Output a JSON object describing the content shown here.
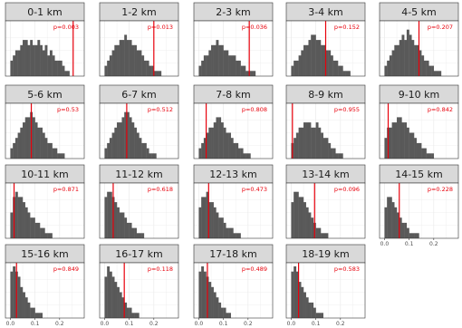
{
  "colors": {
    "strip_fill": "#d9d9d9",
    "strip_border": "#333333",
    "panel_border": "#333333",
    "grid": "#ebebeb",
    "bars": "#595959",
    "observed_line": "#e8000b",
    "p_value_text": "#e8000b"
  },
  "chart_data": {
    "type": "bar",
    "layout": "faceted histograms, 4 rows x 5 columns (19 panels)",
    "xlim": [
      -0.02,
      0.3
    ],
    "x_ticks": [
      "0.0",
      "0.1",
      "0.2"
    ],
    "bins": [
      0.0,
      0.01,
      0.02,
      0.03,
      0.04,
      0.05,
      0.06,
      0.07,
      0.08,
      0.09,
      0.1,
      0.11,
      0.12,
      0.13,
      0.14,
      0.15,
      0.16,
      0.17,
      0.18,
      0.19,
      0.2,
      0.21,
      0.22,
      0.23,
      0.24,
      0.25,
      0.26
    ],
    "panels": [
      {
        "label": "0-1 km",
        "p": "p=0.003",
        "observed": 0.255,
        "values": [
          3,
          4,
          5,
          5,
          6,
          7,
          7,
          6,
          7,
          6,
          6,
          7,
          6,
          5,
          6,
          4,
          5,
          4,
          3,
          3,
          3,
          2,
          1,
          1,
          0,
          0,
          0
        ]
      },
      {
        "label": "1-2 km",
        "p": "p=0.013",
        "observed": 0.2,
        "values": [
          2,
          3,
          4,
          5,
          6,
          6,
          7,
          7,
          8,
          7,
          7,
          6,
          6,
          5,
          5,
          4,
          3,
          3,
          2,
          2,
          1,
          1,
          1,
          0,
          0,
          0,
          0
        ]
      },
      {
        "label": "2-3 km",
        "p": "p=0.036",
        "observed": 0.205,
        "values": [
          2,
          3,
          4,
          4,
          5,
          6,
          6,
          7,
          6,
          6,
          5,
          5,
          4,
          4,
          4,
          3,
          3,
          2,
          2,
          1,
          1,
          1,
          1,
          0,
          0,
          0,
          0
        ]
      },
      {
        "label": "3-4 km",
        "p": "p=0.152",
        "observed": 0.14,
        "values": [
          2,
          3,
          3,
          4,
          5,
          6,
          6,
          7,
          8,
          8,
          7,
          7,
          6,
          6,
          5,
          5,
          4,
          3,
          3,
          2,
          2,
          1,
          1,
          1,
          0,
          0,
          0
        ]
      },
      {
        "label": "4-5 km",
        "p": "p=0.207",
        "observed": 0.14,
        "values": [
          2,
          3,
          4,
          5,
          6,
          6,
          7,
          8,
          7,
          9,
          8,
          7,
          6,
          6,
          5,
          4,
          3,
          3,
          2,
          2,
          1,
          1,
          1,
          0,
          0,
          0,
          0
        ]
      },
      {
        "label": "5-6 km",
        "p": "p=0.53",
        "observed": 0.085,
        "values": [
          2,
          3,
          4,
          5,
          6,
          7,
          8,
          8,
          9,
          8,
          7,
          6,
          6,
          5,
          4,
          3,
          3,
          2,
          2,
          1,
          1,
          1,
          0,
          0,
          0,
          0,
          0
        ]
      },
      {
        "label": "6-7 km",
        "p": "p=0.512",
        "observed": 0.09,
        "values": [
          2,
          3,
          4,
          5,
          6,
          7,
          7,
          8,
          9,
          9,
          8,
          7,
          6,
          5,
          4,
          3,
          3,
          2,
          1,
          1,
          1,
          0,
          0,
          0,
          0,
          0,
          0
        ]
      },
      {
        "label": "7-8 km",
        "p": "p=0.808",
        "observed": 0.03,
        "values": [
          2,
          3,
          4,
          5,
          6,
          6,
          7,
          8,
          8,
          7,
          6,
          5,
          5,
          4,
          3,
          3,
          2,
          2,
          1,
          1,
          1,
          0,
          0,
          0,
          0,
          0,
          0
        ]
      },
      {
        "label": "8-9 km",
        "p": "p=0.955",
        "observed": 0.005,
        "values": [
          3,
          4,
          5,
          6,
          6,
          7,
          7,
          7,
          6,
          6,
          7,
          6,
          5,
          4,
          4,
          3,
          2,
          2,
          1,
          1,
          1,
          0,
          0,
          0,
          0,
          0,
          0
        ]
      },
      {
        "label": "9-10 km",
        "p": "p=0.842",
        "observed": 0.015,
        "values": [
          4,
          6,
          6,
          7,
          7,
          8,
          8,
          7,
          7,
          6,
          5,
          5,
          4,
          3,
          3,
          2,
          2,
          1,
          1,
          1,
          0,
          0,
          0,
          0,
          0,
          0,
          0
        ]
      },
      {
        "label": "10-11 km",
        "p": "p=0.871",
        "observed": 0.015,
        "values": [
          5,
          8,
          9,
          8,
          8,
          7,
          6,
          5,
          4,
          4,
          3,
          3,
          2,
          2,
          1,
          1,
          1,
          0,
          0,
          0,
          0,
          0,
          0,
          0,
          0,
          0,
          0
        ]
      },
      {
        "label": "11-12 km",
        "p": "p=0.618",
        "observed": 0.035,
        "values": [
          8,
          9,
          9,
          8,
          7,
          6,
          5,
          5,
          4,
          3,
          3,
          2,
          2,
          1,
          1,
          1,
          0,
          0,
          0,
          0,
          0,
          0,
          0,
          0,
          0,
          0,
          0
        ]
      },
      {
        "label": "12-13 km",
        "p": "p=0.473",
        "observed": 0.04,
        "values": [
          6,
          8,
          8,
          9,
          7,
          7,
          6,
          5,
          4,
          4,
          3,
          2,
          2,
          2,
          1,
          1,
          1,
          0,
          0,
          0,
          0,
          0,
          0,
          0,
          0,
          0,
          0
        ]
      },
      {
        "label": "13-14 km",
        "p": "p=0.096",
        "observed": 0.095,
        "values": [
          7,
          9,
          9,
          8,
          8,
          7,
          6,
          5,
          4,
          3,
          2,
          2,
          1,
          1,
          1,
          0,
          0,
          0,
          0,
          0,
          0,
          0,
          0,
          0,
          0,
          0,
          0
        ]
      },
      {
        "label": "14-15 km",
        "p": "p=0.228",
        "observed": 0.06,
        "values": [
          6,
          8,
          8,
          7,
          6,
          5,
          4,
          3,
          3,
          2,
          1,
          1,
          1,
          1,
          0,
          0,
          0,
          0,
          0,
          0,
          0,
          0,
          0,
          0,
          0,
          0,
          0
        ]
      },
      {
        "label": "15-16 km",
        "p": "p=0.849",
        "observed": 0.025,
        "values": [
          9,
          10,
          9,
          8,
          6,
          5,
          4,
          3,
          2,
          2,
          1,
          1,
          1,
          0,
          0,
          0,
          0,
          0,
          0,
          0,
          0,
          0,
          0,
          0,
          0,
          0,
          0
        ]
      },
      {
        "label": "16-17 km",
        "p": "p=0.118",
        "observed": 0.08,
        "values": [
          8,
          10,
          9,
          8,
          7,
          6,
          5,
          4,
          3,
          2,
          2,
          1,
          1,
          1,
          0,
          0,
          0,
          0,
          0,
          0,
          0,
          0,
          0,
          0,
          0,
          0,
          0
        ]
      },
      {
        "label": "17-18 km",
        "p": "p=0.489",
        "observed": 0.035,
        "values": [
          9,
          10,
          9,
          8,
          7,
          6,
          5,
          4,
          3,
          2,
          2,
          1,
          1,
          0,
          0,
          0,
          0,
          0,
          0,
          0,
          0,
          0,
          0,
          0,
          0,
          0,
          0
        ]
      },
      {
        "label": "18-19 km",
        "p": "p=0.583",
        "observed": 0.03,
        "values": [
          9,
          10,
          9,
          7,
          6,
          5,
          4,
          3,
          3,
          2,
          1,
          1,
          1,
          0,
          0,
          0,
          0,
          0,
          0,
          0,
          0,
          0,
          0,
          0,
          0,
          0,
          0
        ]
      }
    ]
  }
}
